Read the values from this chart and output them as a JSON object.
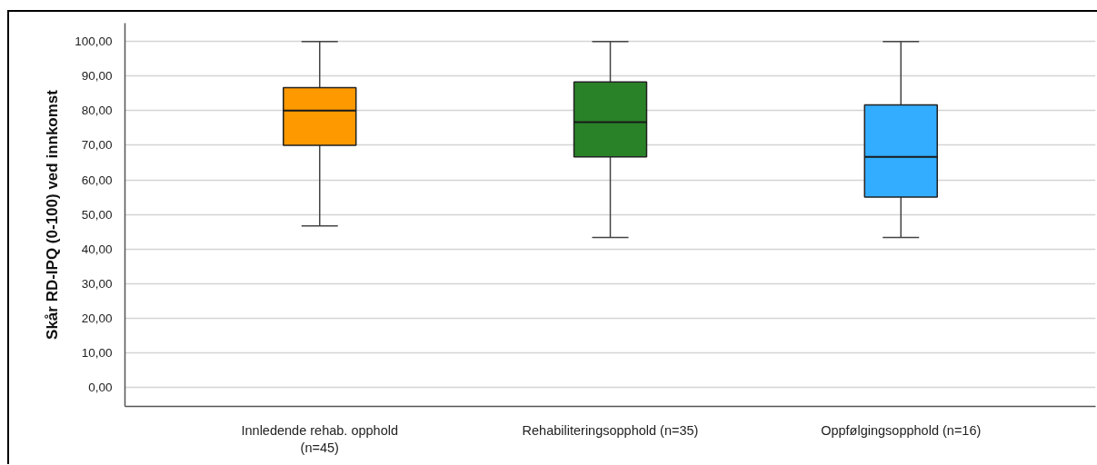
{
  "chart_data": {
    "type": "box",
    "ylabel": "Skår RD-IPQ (0-100) ved innkomst",
    "categories": [
      "Innledende rehab. opphold (n=45)",
      "Rehabiliteringsopphold (n=35)",
      "Oppfølgingsopphold (n=16)"
    ],
    "colors": [
      "#ff9900",
      "#2a8228",
      "#33adff"
    ],
    "boxes": [
      {
        "low": 46.67,
        "q1": 70,
        "median": 80,
        "q3": 86.67,
        "high": 100
      },
      {
        "low": 43.33,
        "q1": 66.67,
        "median": 76.67,
        "q3": 88.33,
        "high": 100
      },
      {
        "low": 43.33,
        "q1": 55,
        "median": 66.67,
        "q3": 81.67,
        "high": 100
      }
    ],
    "ylim": [
      -5.5,
      105.3
    ],
    "yticks": [
      {
        "value": 0,
        "label": "0,00"
      },
      {
        "value": 10,
        "label": "10,00"
      },
      {
        "value": 20,
        "label": "20,00"
      },
      {
        "value": 30,
        "label": "30,00"
      },
      {
        "value": 40,
        "label": "40,00"
      },
      {
        "value": 50,
        "label": "50,00"
      },
      {
        "value": 60,
        "label": "60,00"
      },
      {
        "value": 70,
        "label": "70,00"
      },
      {
        "value": 80,
        "label": "80,00"
      },
      {
        "value": 90,
        "label": "90,00"
      },
      {
        "value": 100,
        "label": "100,00"
      }
    ],
    "grid": "y"
  }
}
